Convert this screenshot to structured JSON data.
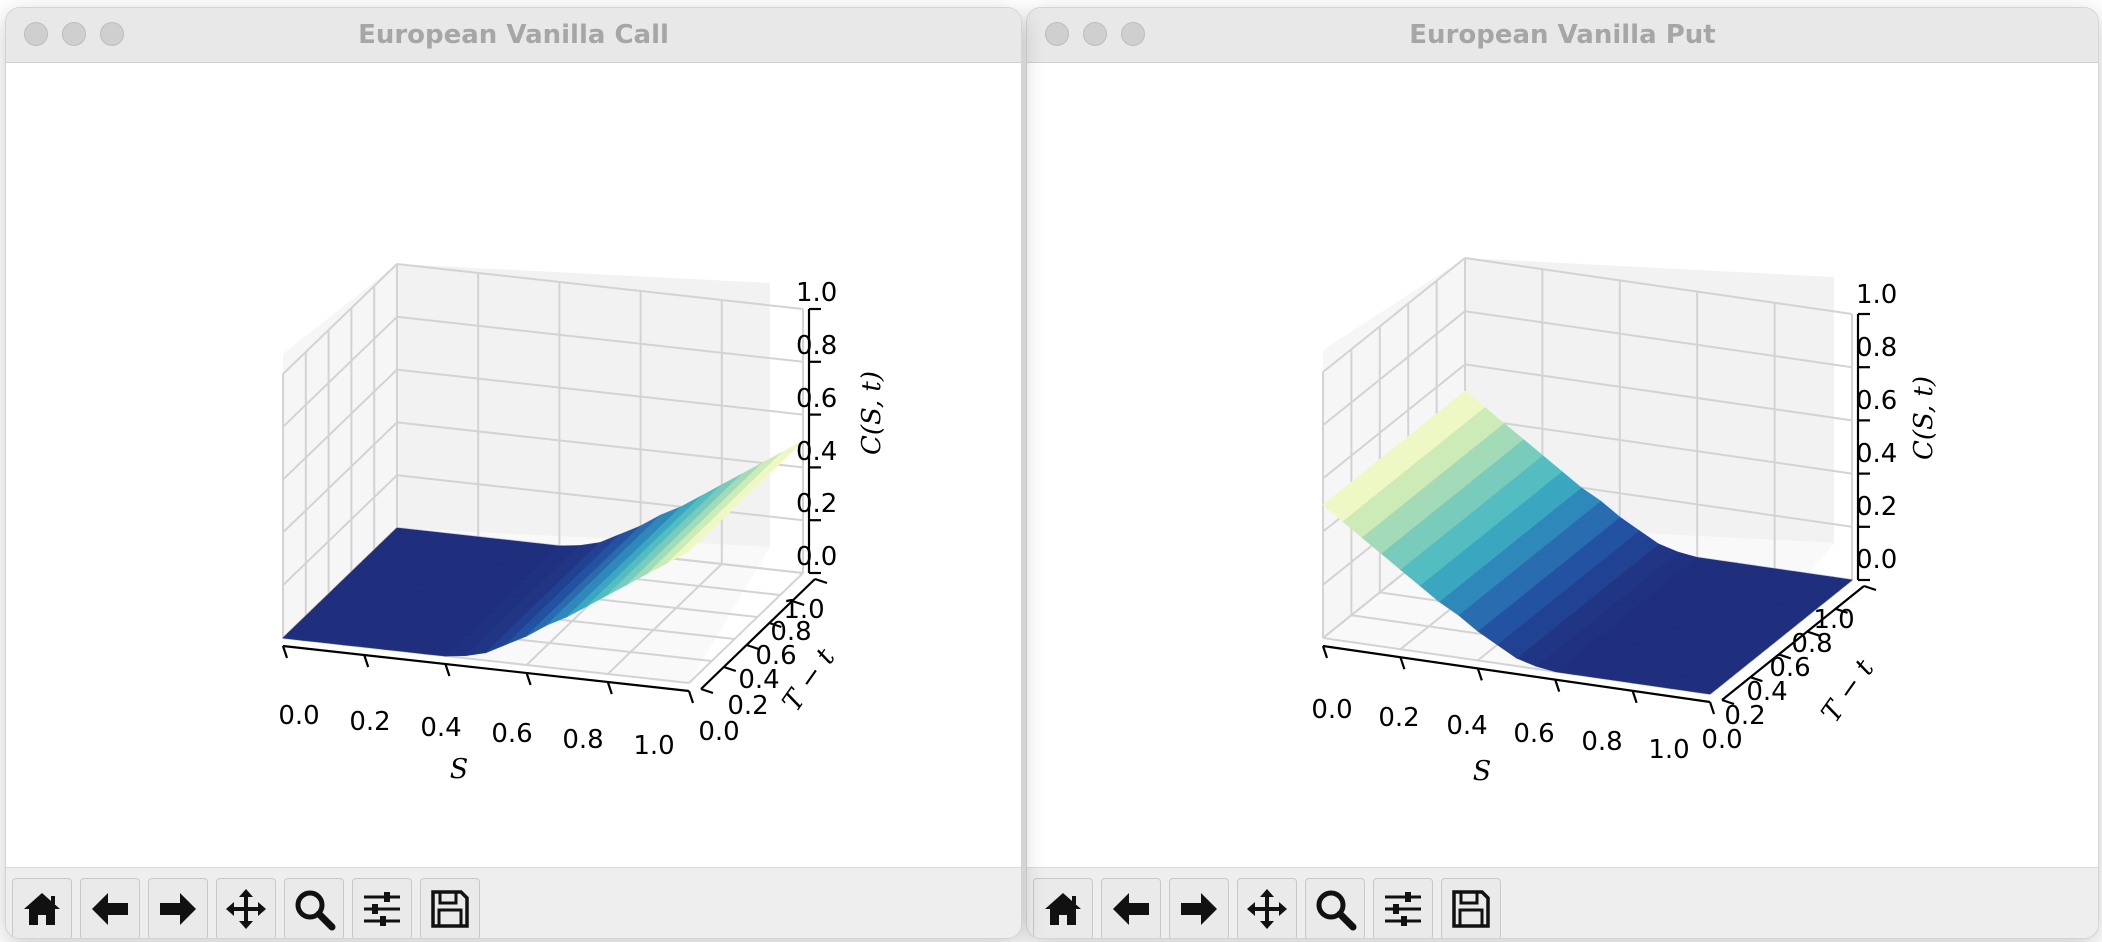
{
  "windows": [
    {
      "id": "call",
      "title": "European Vanilla Call",
      "toolbar": [
        "home-icon",
        "back-arrow-icon",
        "forward-arrow-icon",
        "pan-icon",
        "zoom-icon",
        "configure-subplots-icon",
        "save-icon"
      ]
    },
    {
      "id": "put",
      "title": "European Vanilla Put",
      "toolbar": [
        "home-icon",
        "back-arrow-icon",
        "forward-arrow-icon",
        "pan-icon",
        "zoom-icon",
        "configure-subplots-icon",
        "save-icon"
      ]
    }
  ],
  "chart_data": [
    {
      "type": "surface",
      "title": "European Vanilla Call",
      "xlabel": "S",
      "ylabel": "T − t",
      "zlabel": "C(S, t)",
      "x_ticks": [
        "0.0",
        "0.2",
        "0.4",
        "0.6",
        "0.8",
        "1.0"
      ],
      "y_ticks": [
        "0.0",
        "0.2",
        "0.4",
        "0.6",
        "0.8",
        "1.0"
      ],
      "z_ticks": [
        "0.0",
        "0.2",
        "0.4",
        "0.6",
        "0.8",
        "1.0"
      ],
      "xlim": [
        0,
        1
      ],
      "ylim": [
        0,
        1
      ],
      "zlim": [
        0,
        1
      ],
      "strike": 0.5,
      "surface_x": [
        0.0,
        0.05,
        0.1,
        0.15,
        0.2,
        0.25,
        0.3,
        0.35,
        0.4,
        0.45,
        0.5,
        0.55,
        0.6,
        0.65,
        0.7,
        0.75,
        0.8,
        0.85,
        0.9,
        0.95,
        1.0
      ],
      "surface_z": [
        0.0,
        0.0,
        0.0,
        0.0,
        0.0,
        0.0,
        0.0,
        0.0,
        0.0,
        0.01,
        0.03,
        0.07,
        0.11,
        0.16,
        0.2,
        0.25,
        0.3,
        0.35,
        0.4,
        0.45,
        0.5
      ],
      "colormap": [
        "#1f2f7d",
        "#234ea0",
        "#2c7fb8",
        "#41b6c4",
        "#7fcdbb",
        "#c7e9b4",
        "#ffffcc"
      ],
      "grid": true
    },
    {
      "type": "surface",
      "title": "European Vanilla Put",
      "xlabel": "S",
      "ylabel": "T − t",
      "zlabel": "C(S, t)",
      "x_ticks": [
        "0.0",
        "0.2",
        "0.4",
        "0.6",
        "0.8",
        "1.0"
      ],
      "y_ticks": [
        "0.0",
        "0.2",
        "0.4",
        "0.6",
        "0.8",
        "1.0"
      ],
      "z_ticks": [
        "0.0",
        "0.2",
        "0.4",
        "0.6",
        "0.8",
        "1.0"
      ],
      "xlim": [
        0,
        1
      ],
      "ylim": [
        0,
        1
      ],
      "zlim": [
        0,
        1
      ],
      "strike": 0.5,
      "surface_x": [
        0.0,
        0.05,
        0.1,
        0.15,
        0.2,
        0.25,
        0.3,
        0.35,
        0.4,
        0.45,
        0.5,
        0.55,
        0.6,
        0.65,
        0.7,
        0.75,
        0.8,
        0.85,
        0.9,
        0.95,
        1.0
      ],
      "surface_z": [
        0.5,
        0.45,
        0.4,
        0.35,
        0.3,
        0.25,
        0.2,
        0.16,
        0.11,
        0.07,
        0.03,
        0.01,
        0.0,
        0.0,
        0.0,
        0.0,
        0.0,
        0.0,
        0.0,
        0.0,
        0.0
      ],
      "colormap": [
        "#1f2f7d",
        "#234ea0",
        "#2c7fb8",
        "#41b6c4",
        "#7fcdbb",
        "#c7e9b4",
        "#ffffcc"
      ],
      "grid": true
    }
  ]
}
